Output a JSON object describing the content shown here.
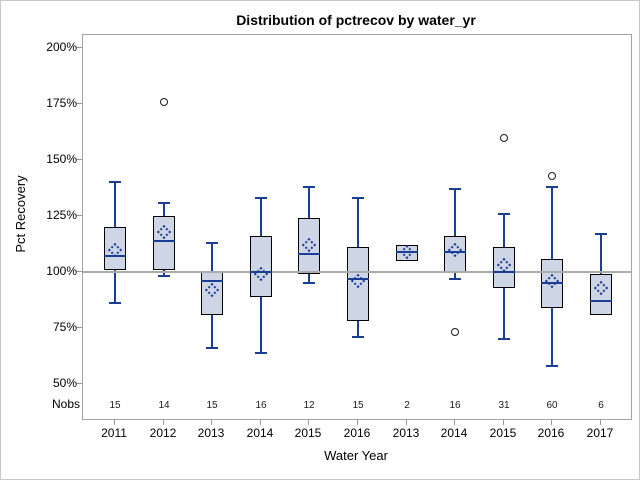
{
  "title": "Distribution of pctrecov by water_yr",
  "y_axis": {
    "label": "Pct Recovery",
    "ticks": [
      {
        "value": 200,
        "label": "200%"
      },
      {
        "value": 175,
        "label": "175%"
      },
      {
        "value": 150,
        "label": "150%"
      },
      {
        "value": 125,
        "label": "125%"
      },
      {
        "value": 100,
        "label": "100%"
      },
      {
        "value": 75,
        "label": "75%"
      },
      {
        "value": 50,
        "label": "50%"
      }
    ]
  },
  "x_axis": {
    "label": "Water Year"
  },
  "nobs_row_label": "Nobs",
  "colors": {
    "box_fill": "#ced5e5",
    "box_border": "#000000",
    "whisker_median_mean": "#1a3e94",
    "reference_line": "#ababab",
    "frame": "#a2a2aa",
    "outlier_stroke": "#1a1a1a"
  },
  "chart_data": {
    "type": "box",
    "title": "Distribution of pctrecov by water_yr",
    "xlabel": "Water Year",
    "ylabel": "Pct Recovery",
    "ylim": [
      50,
      200
    ],
    "y_tick_unit": "percent",
    "grid": false,
    "reference_line_y": 100,
    "categories": [
      "2011",
      "2012",
      "2013",
      "2014",
      "2015",
      "2016",
      "2013",
      "2014",
      "2015",
      "2016",
      "2017"
    ],
    "nobs": [
      15,
      14,
      15,
      16,
      12,
      15,
      2,
      16,
      31,
      60,
      6
    ],
    "boxes": [
      {
        "category": "2011",
        "nobs": 15,
        "whisker_low": 86,
        "q1": 101,
        "median": 107,
        "mean": 110,
        "q3": 120,
        "whisker_high": 140,
        "outliers": []
      },
      {
        "category": "2012",
        "nobs": 14,
        "whisker_low": 98,
        "q1": 101,
        "median": 114,
        "mean": 118,
        "q3": 125,
        "whisker_high": 131,
        "outliers": [
          176
        ]
      },
      {
        "category": "2013",
        "nobs": 15,
        "whisker_low": 66,
        "q1": 81,
        "median": 96,
        "mean": 92,
        "q3": 100,
        "whisker_high": 113,
        "outliers": []
      },
      {
        "category": "2014",
        "nobs": 16,
        "whisker_low": 64,
        "q1": 89,
        "median": 100,
        "mean": 99,
        "q3": 116,
        "whisker_high": 133,
        "outliers": []
      },
      {
        "category": "2015",
        "nobs": 12,
        "whisker_low": 95,
        "q1": 99,
        "median": 108,
        "mean": 112,
        "q3": 124,
        "whisker_high": 138,
        "outliers": []
      },
      {
        "category": "2016",
        "nobs": 15,
        "whisker_low": 71,
        "q1": 78,
        "median": 97,
        "mean": 96,
        "q3": 111,
        "whisker_high": 133,
        "outliers": []
      },
      {
        "category": "2013",
        "nobs": 2,
        "whisker_low": 105,
        "q1": 105,
        "median": 109,
        "mean": 109,
        "q3": 112,
        "whisker_high": 112,
        "outliers": []
      },
      {
        "category": "2014",
        "nobs": 16,
        "whisker_low": 97,
        "q1": 100,
        "median": 109,
        "mean": 110,
        "q3": 116,
        "whisker_high": 137,
        "outliers": [
          73
        ]
      },
      {
        "category": "2015",
        "nobs": 31,
        "whisker_low": 70,
        "q1": 93,
        "median": 100,
        "mean": 103,
        "q3": 111,
        "whisker_high": 126,
        "outliers": [
          160
        ]
      },
      {
        "category": "2016",
        "nobs": 60,
        "whisker_low": 58,
        "q1": 84,
        "median": 95,
        "mean": 96,
        "q3": 106,
        "whisker_high": 138,
        "outliers": [
          143
        ]
      },
      {
        "category": "2017",
        "nobs": 6,
        "whisker_low": 81,
        "q1": 81,
        "median": 87,
        "mean": 93,
        "q3": 99,
        "whisker_high": 117,
        "outliers": []
      }
    ]
  }
}
